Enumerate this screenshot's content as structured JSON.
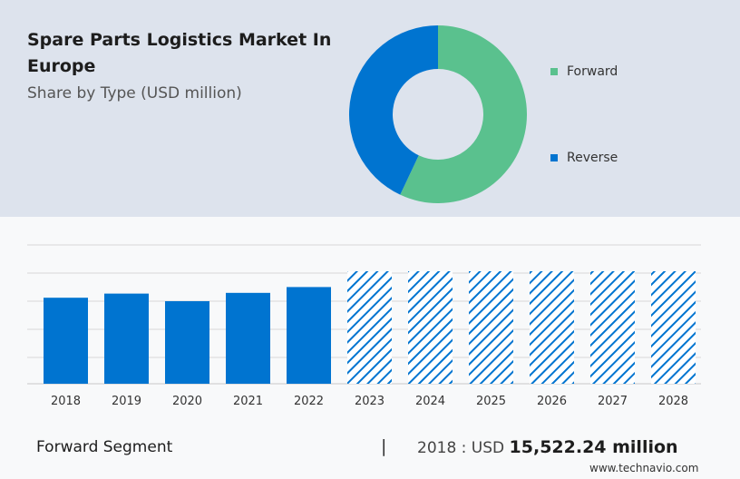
{
  "title": "Spare Parts Logistics Market In Europe",
  "subtitle": "Share by Type (USD million)",
  "colors": {
    "forward": "#5ac18e",
    "reverse": "#0074d0",
    "bar": "#0074d0",
    "panel": "#dde3ed"
  },
  "chart_data": [
    {
      "type": "pie",
      "title": "Spare Parts Logistics Market In Europe",
      "subtitle": "Share by Type (USD million)",
      "donut": true,
      "legend_position": "right",
      "slices": [
        {
          "name": "Forward",
          "value": 57,
          "color": "#5ac18e"
        },
        {
          "name": "Reverse",
          "value": 43,
          "color": "#0074d0"
        }
      ]
    },
    {
      "type": "bar",
      "categories": [
        "2018",
        "2019",
        "2020",
        "2021",
        "2022",
        "2023",
        "2024",
        "2025",
        "2026",
        "2027",
        "2028"
      ],
      "values": [
        15522.24,
        16270,
        14900,
        16400,
        17450,
        20300,
        20300,
        20300,
        20300,
        20300,
        20300
      ],
      "forecast_from": "2023",
      "forecast_style": "hatched",
      "ylim": [
        0,
        24000
      ],
      "grid": true
    }
  ],
  "footer": {
    "segment_label": "Forward Segment",
    "separator": "|",
    "value_prefix": "2018 : USD",
    "value_amount": "15,522.24 million"
  },
  "brand": "www.technavio.com"
}
